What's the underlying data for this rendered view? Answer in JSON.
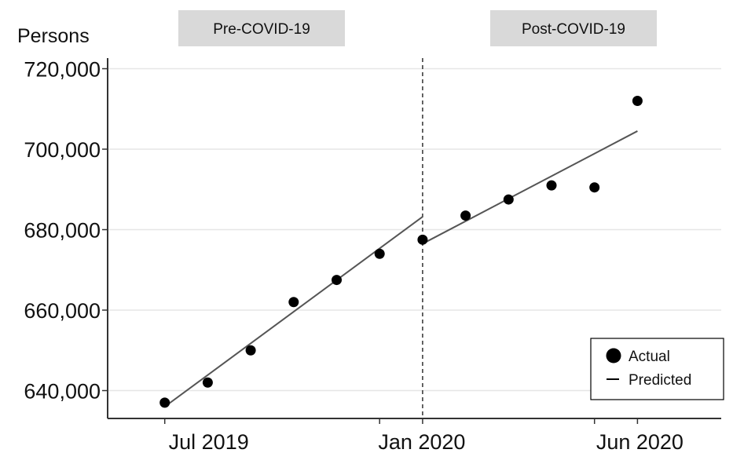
{
  "chart_data": {
    "type": "scatter",
    "ylabel": "Persons",
    "yticks": [
      640000,
      660000,
      680000,
      700000,
      720000
    ],
    "ytick_labels": [
      "640,000",
      "660,000",
      "680,000",
      "700,000",
      "720,000"
    ],
    "xtick_labels": [
      "Jul 2019",
      "Jan 2020",
      "Jun 2020"
    ],
    "ylim": [
      633000,
      723000
    ],
    "xlim": [
      "2019-06",
      "2020-07"
    ],
    "grid": true,
    "periods": [
      {
        "label": "Pre-COVID-19"
      },
      {
        "label": "Post-COVID-19"
      }
    ],
    "intervention": "2020-01",
    "series": [
      {
        "name": "Actual",
        "mark": "point",
        "x": [
          "2019-07",
          "2019-08",
          "2019-09",
          "2019-10",
          "2019-11",
          "2019-12",
          "2020-01",
          "2020-02",
          "2020-03",
          "2020-04",
          "2020-05",
          "2020-06"
        ],
        "y": [
          637000,
          642000,
          650000,
          662000,
          667500,
          674000,
          677500,
          683500,
          687500,
          691000,
          690500,
          712000
        ]
      },
      {
        "name": "Predicted",
        "mark": "line",
        "segments": [
          {
            "x": [
              "2019-07",
              "2020-01"
            ],
            "y": [
              636000,
              683200
            ]
          },
          {
            "x": [
              "2020-01",
              "2020-06"
            ],
            "y": [
              676500,
              704500
            ]
          }
        ]
      }
    ],
    "legend": {
      "position": "bottom-right",
      "items": [
        {
          "label": "Actual",
          "symbol": "dot"
        },
        {
          "label": "Predicted",
          "symbol": "line"
        }
      ]
    },
    "colors": {
      "points": "#000000",
      "line": "#555555",
      "grid": "#e6e6e6",
      "period_box": "#d9d9d9",
      "axis": "#333333"
    }
  }
}
